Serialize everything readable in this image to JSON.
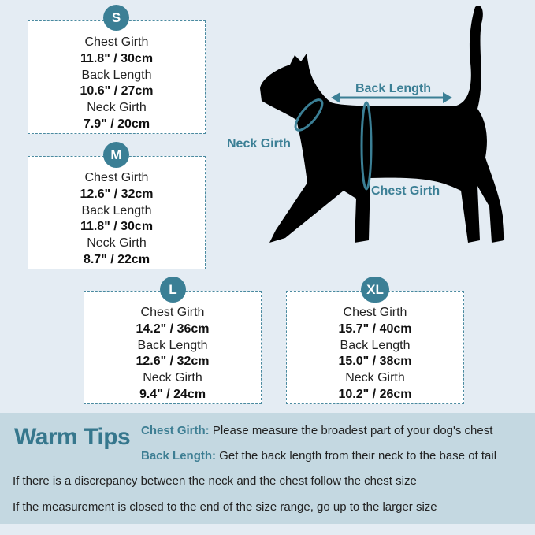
{
  "sizes": [
    {
      "size": "S",
      "chest_label": "Chest Girth",
      "chest": "11.8\" / 30cm",
      "back_label": "Back Length",
      "back": "10.6\" / 27cm",
      "neck_label": "Neck Girth",
      "neck": "7.9\" / 20cm"
    },
    {
      "size": "M",
      "chest_label": "Chest Girth",
      "chest": "12.6\" / 32cm",
      "back_label": "Back Length",
      "back": "11.8\" / 30cm",
      "neck_label": "Neck Girth",
      "neck": "8.7\" / 22cm"
    },
    {
      "size": "L",
      "chest_label": "Chest Girth",
      "chest": "14.2\" / 36cm",
      "back_label": "Back Length",
      "back": "12.6\" / 32cm",
      "neck_label": "Neck Girth",
      "neck": "9.4\" / 24cm"
    },
    {
      "size": "XL",
      "chest_label": "Chest Girth",
      "chest": "15.7\" / 40cm",
      "back_label": "Back Length",
      "back": "15.0\" / 38cm",
      "neck_label": "Neck Girth",
      "neck": "10.2\" / 26cm"
    }
  ],
  "diagram": {
    "back_length": "Back Length",
    "neck_girth": "Neck Girth",
    "chest_girth": "Chest Girth"
  },
  "tips": {
    "title": "Warm Tips",
    "chest_key": "Chest Girth:",
    "chest_text": " Please measure the broadest part of your dog's chest",
    "back_key": "Back Length:",
    "back_text": " Get the back length from their neck to the base of tail",
    "line1": "If there is a discrepancy between the neck and the chest follow the chest size",
    "line2": "If the measurement is closed to the end of the size range, go up to the larger size"
  },
  "colors": {
    "accent": "#3b7f95",
    "background": "#e4ecf3",
    "tips_panel": "#c4d8e1"
  }
}
